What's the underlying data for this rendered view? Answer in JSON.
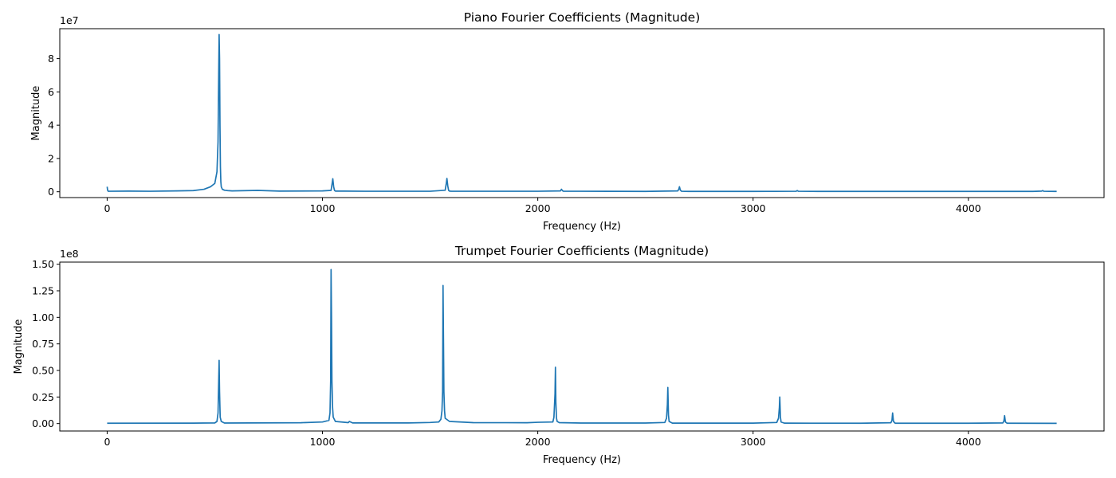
{
  "chart_data": [
    {
      "type": "line",
      "title": "Piano Fourier Coefficients (Magnitude)",
      "xlabel": "Frequency (Hz)",
      "ylabel": "Magnitude",
      "y_offset_label": "1e7",
      "xlim": [
        -220,
        4630
      ],
      "ylim": [
        -3500000,
        98000000
      ],
      "xticks": [
        0,
        1000,
        2000,
        3000,
        4000
      ],
      "xtick_labels": [
        "0",
        "1000",
        "2000",
        "3000",
        "4000"
      ],
      "yticks": [
        0,
        20000000,
        40000000,
        60000000,
        80000000
      ],
      "ytick_labels": [
        "0",
        "2",
        "4",
        "6",
        "8"
      ],
      "grid": false,
      "series": [
        {
          "color": "#1f77b4",
          "x": [
            0,
            2,
            5,
            100,
            200,
            320,
            400,
            450,
            480,
            500,
            510,
            515,
            518,
            520,
            522,
            524,
            526,
            528,
            530,
            535,
            545,
            560,
            580,
            650,
            700,
            800,
            1000,
            1040,
            1045,
            1048,
            1052,
            1056,
            1060,
            1100,
            1200,
            1500,
            1570,
            1575,
            1578,
            1582,
            1586,
            1590,
            1600,
            1700,
            2000,
            2105,
            2110,
            2115,
            2120,
            2200,
            2500,
            2650,
            2655,
            2658,
            2662,
            2668,
            2700,
            3000,
            3200,
            3205,
            3210,
            3300,
            3800,
            4300,
            4340,
            4345,
            4350,
            4400,
            4410
          ],
          "y": [
            3000000,
            1000000,
            300000,
            400000,
            300000,
            500000,
            700000,
            1500000,
            3000000,
            5000000,
            12000000,
            30000000,
            70000000,
            94500000,
            80000000,
            40000000,
            15000000,
            6000000,
            3000000,
            1500000,
            900000,
            700000,
            500000,
            700000,
            800000,
            400000,
            500000,
            800000,
            5000000,
            7800000,
            3000000,
            800000,
            400000,
            400000,
            300000,
            300000,
            900000,
            5000000,
            8000000,
            3500000,
            800000,
            400000,
            300000,
            300000,
            300000,
            500000,
            1500000,
            600000,
            300000,
            300000,
            200000,
            500000,
            1500000,
            3000000,
            1000000,
            300000,
            200000,
            200000,
            300000,
            700000,
            300000,
            200000,
            200000,
            200000,
            400000,
            700000,
            300000,
            200000,
            200000
          ]
        }
      ]
    },
    {
      "type": "line",
      "title": "Trumpet Fourier Coefficients (Magnitude)",
      "xlabel": "Frequency (Hz)",
      "ylabel": "Magnitude",
      "y_offset_label": "1e8",
      "xlim": [
        -220,
        4630
      ],
      "ylim": [
        -7000000,
        152000000
      ],
      "xticks": [
        0,
        1000,
        2000,
        3000,
        4000
      ],
      "xtick_labels": [
        "0",
        "1000",
        "2000",
        "3000",
        "4000"
      ],
      "yticks": [
        0,
        25000000,
        50000000,
        75000000,
        100000000,
        125000000,
        150000000
      ],
      "ytick_labels": [
        "0.00",
        "0.25",
        "0.50",
        "0.75",
        "1.00",
        "1.25",
        "1.50"
      ],
      "grid": false,
      "series": [
        {
          "color": "#1f77b4",
          "x": [
            0,
            400,
            500,
            510,
            515,
            518,
            520,
            522,
            525,
            530,
            545,
            900,
            1000,
            1030,
            1035,
            1038,
            1040,
            1042,
            1044,
            1047,
            1050,
            1060,
            1120,
            1125,
            1140,
            1400,
            1500,
            1540,
            1550,
            1555,
            1558,
            1560,
            1562,
            1564,
            1567,
            1570,
            1590,
            1700,
            1950,
            2000,
            2070,
            2075,
            2080,
            2082,
            2084,
            2087,
            2090,
            2100,
            2200,
            2500,
            2590,
            2598,
            2602,
            2604,
            2607,
            2610,
            2625,
            3000,
            3110,
            3118,
            3122,
            3124,
            3127,
            3130,
            3145,
            3500,
            3640,
            3645,
            3648,
            3652,
            3660,
            4000,
            4160,
            4165,
            4168,
            4172,
            4180,
            4410
          ],
          "y": [
            300000,
            400000,
            600000,
            2000000,
            10000000,
            40000000,
            59500000,
            30000000,
            6000000,
            2000000,
            500000,
            800000,
            1500000,
            3000000,
            10000000,
            40000000,
            145000000,
            100000000,
            40000000,
            15000000,
            6000000,
            2000000,
            900000,
            2000000,
            600000,
            600000,
            1000000,
            1500000,
            4000000,
            12000000,
            30000000,
            130000000,
            80000000,
            30000000,
            12000000,
            5000000,
            2000000,
            900000,
            800000,
            1200000,
            1500000,
            6000000,
            28000000,
            53000000,
            20000000,
            5000000,
            2000000,
            900000,
            500000,
            500000,
            1000000,
            5000000,
            18000000,
            34000000,
            8000000,
            2000000,
            400000,
            400000,
            1000000,
            5000000,
            15000000,
            25000000,
            6000000,
            1500000,
            400000,
            300000,
            800000,
            3000000,
            10000000,
            2000000,
            300000,
            300000,
            600000,
            2500000,
            7500000,
            1500000,
            300000,
            200000
          ]
        }
      ]
    }
  ]
}
